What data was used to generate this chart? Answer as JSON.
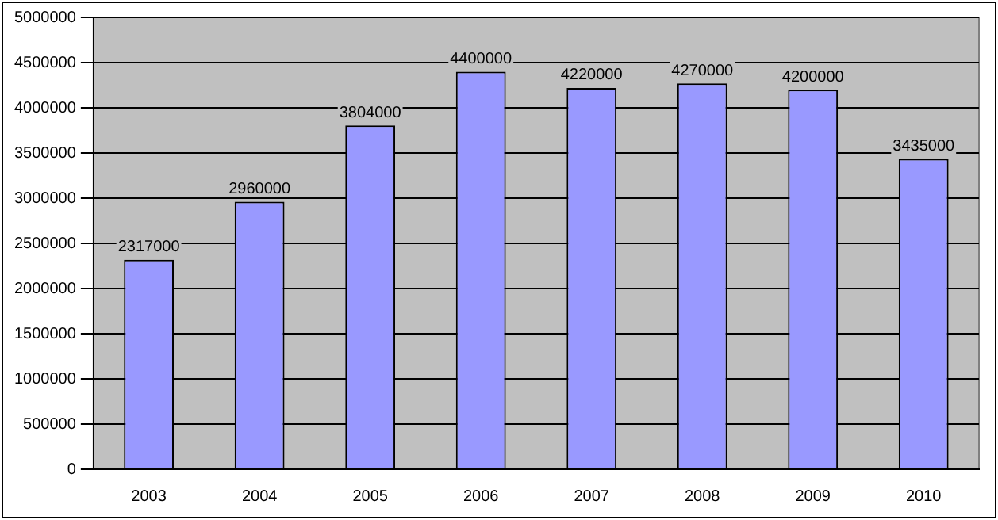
{
  "chart_data": {
    "type": "bar",
    "categories": [
      "2003",
      "2004",
      "2005",
      "2006",
      "2007",
      "2008",
      "2009",
      "2010"
    ],
    "values": [
      2317000,
      2960000,
      3804000,
      4400000,
      4220000,
      4270000,
      4200000,
      3435000
    ],
    "color": "#9999ff",
    "ylim": [
      0,
      5000000
    ],
    "yticks": [
      0,
      500000,
      1000000,
      1500000,
      2000000,
      2500000,
      3000000,
      3500000,
      4000000,
      4500000,
      5000000
    ],
    "grid": "y",
    "data_labels": true
  }
}
